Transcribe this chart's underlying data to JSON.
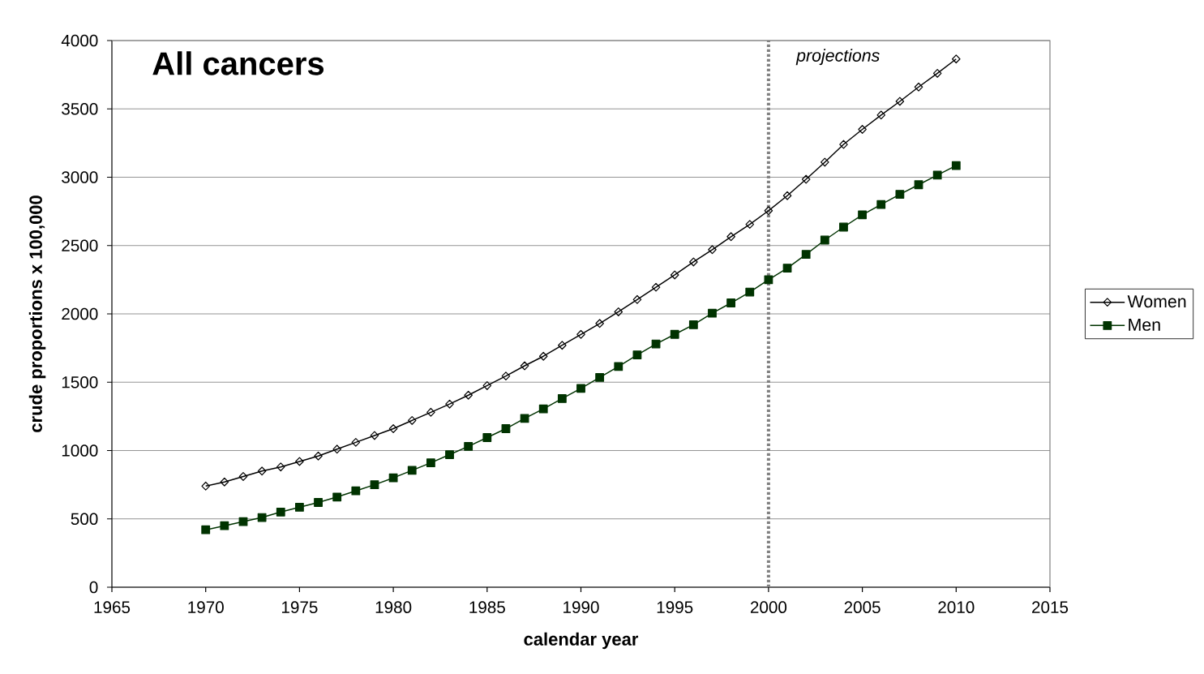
{
  "chart_data": {
    "type": "line",
    "title": "All cancers",
    "xlabel": "calendar year",
    "ylabel": "crude proportions x 100,000",
    "x": [
      1970,
      1971,
      1972,
      1973,
      1974,
      1975,
      1976,
      1977,
      1978,
      1979,
      1980,
      1981,
      1982,
      1983,
      1984,
      1985,
      1986,
      1987,
      1988,
      1989,
      1990,
      1991,
      1992,
      1993,
      1994,
      1995,
      1996,
      1997,
      1998,
      1999,
      2000,
      2001,
      2002,
      2003,
      2004,
      2005,
      2006,
      2007,
      2008,
      2009,
      2010
    ],
    "series": [
      {
        "name": "Women",
        "color": "#000000",
        "marker": "diamond",
        "values": [
          740,
          770,
          810,
          850,
          880,
          920,
          960,
          1010,
          1060,
          1110,
          1160,
          1220,
          1280,
          1340,
          1405,
          1475,
          1545,
          1620,
          1690,
          1770,
          1850,
          1930,
          2015,
          2105,
          2195,
          2285,
          2380,
          2470,
          2565,
          2655,
          2755,
          2865,
          2985,
          3110,
          3240,
          3350,
          3455,
          3555,
          3660,
          3760,
          3865
        ]
      },
      {
        "name": "Men",
        "color": "#003300",
        "marker": "square",
        "values": [
          420,
          450,
          480,
          510,
          550,
          585,
          620,
          660,
          705,
          750,
          800,
          855,
          910,
          970,
          1030,
          1095,
          1160,
          1235,
          1305,
          1380,
          1455,
          1535,
          1615,
          1700,
          1780,
          1850,
          1920,
          2005,
          2080,
          2160,
          2250,
          2335,
          2435,
          2540,
          2635,
          2725,
          2800,
          2875,
          2945,
          3015,
          3085
        ]
      }
    ],
    "xlim": [
      1965,
      2015
    ],
    "ylim": [
      0,
      4000
    ],
    "xticks": [
      1965,
      1970,
      1975,
      1980,
      1985,
      1990,
      1995,
      2000,
      2005,
      2010,
      2015
    ],
    "yticks": [
      0,
      500,
      1000,
      1500,
      2000,
      2500,
      3000,
      3500,
      4000
    ],
    "grid": "y",
    "legend": "right",
    "ref_lines": [
      {
        "axis": "x",
        "value": 2000,
        "label": "projections",
        "color": "#808080",
        "line_style": "dotted"
      }
    ]
  }
}
